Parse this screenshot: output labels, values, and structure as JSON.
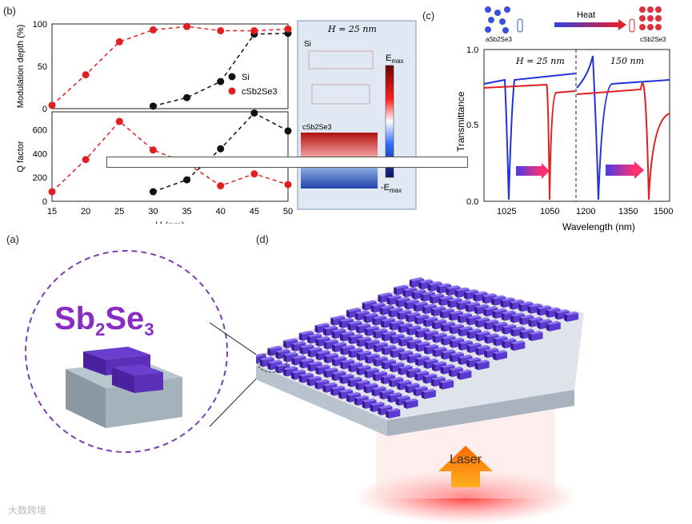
{
  "panel_labels": {
    "a": "(a)",
    "b": "(b)",
    "c": "(c)",
    "d": "(d)"
  },
  "chart_data": [
    {
      "type": "scatter",
      "title": "",
      "xlabel": "",
      "ylabel": "Modulation depth (%)",
      "xlim": [
        15,
        50
      ],
      "ylim": [
        0,
        100
      ],
      "xticks": [
        15,
        20,
        25,
        30,
        35,
        40,
        45,
        50
      ],
      "yticks": [
        0,
        50,
        100
      ],
      "legend": [
        "Si",
        "cSb2Se3"
      ],
      "series": [
        {
          "name": "Si",
          "color": "#111111",
          "x": [
            30,
            35,
            40,
            45,
            50
          ],
          "y": [
            3,
            13,
            32,
            88,
            89
          ]
        },
        {
          "name": "cSb2Se3",
          "color": "#e02020",
          "x": [
            15,
            20,
            25,
            30,
            35,
            40,
            45,
            50
          ],
          "y": [
            4,
            40,
            79,
            93,
            97,
            92,
            92,
            94
          ]
        }
      ]
    },
    {
      "type": "scatter",
      "xlabel": "H (nm)",
      "ylabel": "Q factor",
      "xlim": [
        15,
        50
      ],
      "ylim": [
        0,
        750
      ],
      "xticks": [
        15,
        20,
        25,
        30,
        35,
        40,
        45,
        50
      ],
      "yticks": [
        0,
        200,
        400,
        600
      ],
      "series": [
        {
          "name": "Si",
          "color": "#111111",
          "x": [
            30,
            35,
            40,
            45,
            50
          ],
          "y": [
            80,
            180,
            440,
            740,
            590
          ]
        },
        {
          "name": "cSb2Se3",
          "color": "#e02020",
          "x": [
            15,
            20,
            25,
            30,
            35,
            40,
            45,
            50
          ],
          "y": [
            80,
            350,
            670,
            430,
            320,
            130,
            230,
            140
          ]
        }
      ]
    },
    {
      "type": "line",
      "ylabel": "Transmittance",
      "xlabel": "Wavelength (nm)",
      "ylim": [
        0,
        1.0
      ],
      "yticks": [
        "0.0",
        "0.5",
        "1.0"
      ],
      "xticks": [
        "1025",
        "1050",
        "1200",
        "1350",
        "1500"
      ],
      "annotations": [
        "H = 25 nm",
        "150 nm"
      ],
      "series": [
        {
          "name": "aSb2Se3",
          "color": "#2233dd"
        },
        {
          "name": "cSb2Se3",
          "color": "#e02020"
        }
      ]
    }
  ],
  "field_map": {
    "title": "H = 25 nm",
    "label_top": "Si",
    "label_bottom": "cSb2Se3",
    "emax": "E",
    "emax_sub": "max",
    "emin": "-E",
    "emin_sub": "max"
  },
  "heat_bar": {
    "heat": "Heat",
    "left": "aSb2Se3",
    "right": "cSb2Se3"
  },
  "sb_label": {
    "main1": "Sb",
    "sub1": "2",
    "main2": "Se",
    "sub2": "3"
  },
  "laser": "Laser",
  "watermark": "大数跨境"
}
